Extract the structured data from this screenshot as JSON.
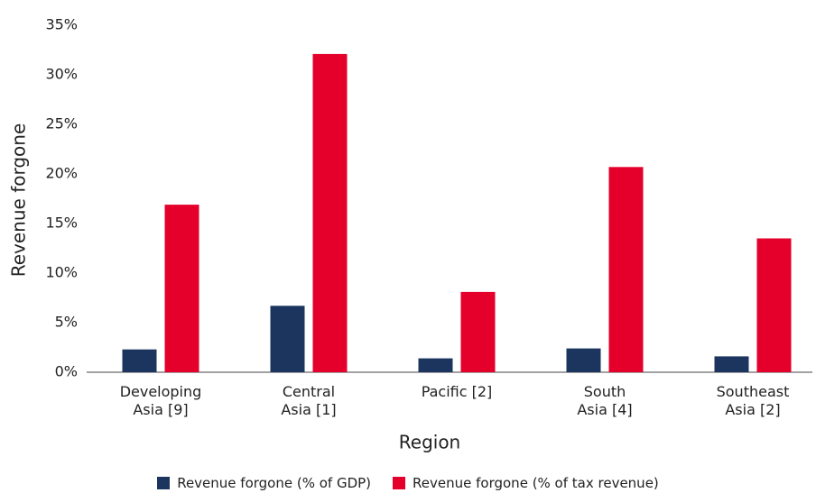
{
  "chart_data": {
    "type": "bar",
    "x_label": "Region",
    "y_label": "Revenue forgone",
    "categories": [
      "Developing\nAsia [9]",
      "Central\nAsia [1]",
      "Pacific [2]",
      "South\nAsia [4]",
      "Southeast\nAsia [2]"
    ],
    "series": [
      {
        "name": "Revenue forgone (% of GDP)",
        "color": "#1c355e",
        "values": [
          2.3,
          6.7,
          1.4,
          2.4,
          1.6
        ]
      },
      {
        "name": "Revenue forgone (% of tax revenue)",
        "color": "#e4002b",
        "values": [
          16.9,
          32.1,
          8.1,
          20.7,
          13.5
        ]
      }
    ],
    "ylim": [
      0,
      35
    ],
    "yticks": [
      {
        "value": 0,
        "label": "0%"
      },
      {
        "value": 5,
        "label": "5%"
      },
      {
        "value": 10,
        "label": "10%"
      },
      {
        "value": 15,
        "label": "15%"
      },
      {
        "value": 20,
        "label": "20%"
      },
      {
        "value": 25,
        "label": "25%"
      },
      {
        "value": 30,
        "label": "30%"
      },
      {
        "value": 35,
        "label": "35%"
      }
    ],
    "grid": false
  }
}
